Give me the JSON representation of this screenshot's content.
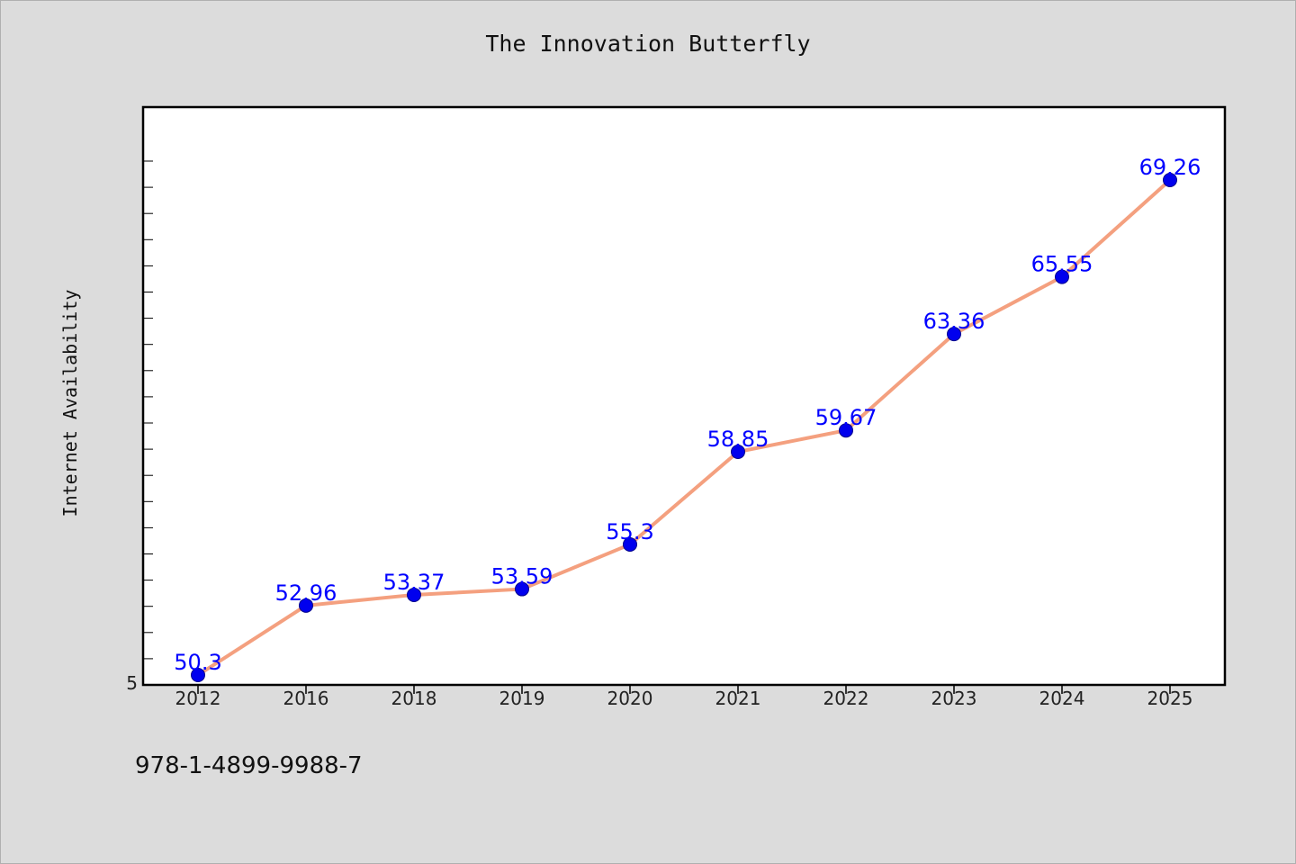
{
  "title": "The Innovation Butterfly",
  "footer": "978-1-4899-9988-7",
  "colors": {
    "background": "#dcdcdc",
    "plot_background": "#ffffff",
    "line": "#f4a07f",
    "marker": "#0000ee",
    "label": "#0000ff"
  },
  "chart_data": {
    "type": "line",
    "title": "The Innovation Butterfly",
    "xlabel": "",
    "ylabel": "Internet Availability",
    "categories": [
      "2012",
      "2016",
      "2018",
      "2019",
      "2020",
      "2021",
      "2022",
      "2023",
      "2024",
      "2025"
    ],
    "series": [
      {
        "values": [
          50.3,
          52.96,
          53.37,
          53.59,
          55.3,
          58.85,
          59.67,
          63.36,
          65.55,
          69.26
        ],
        "data_labels": [
          "50.3",
          "52.96",
          "53.37",
          "53.59",
          "55.3",
          "58.85",
          "59.67",
          "63.36",
          "65.55",
          "69.26"
        ]
      }
    ],
    "ylim": [
      50,
      72
    ],
    "y_tick_labels": [
      "5"
    ],
    "grid": false,
    "legend": "none"
  }
}
